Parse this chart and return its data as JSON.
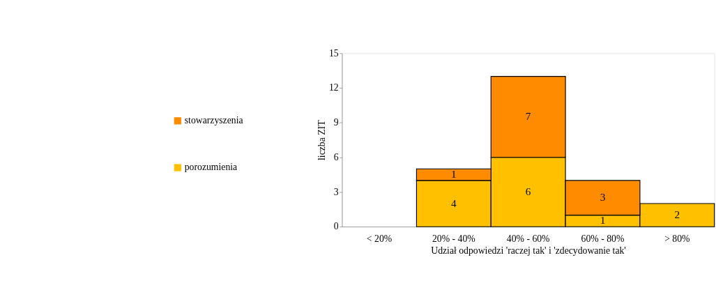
{
  "chart_data": {
    "type": "bar",
    "stacked": true,
    "categories": [
      "< 20%",
      "20% - 40%",
      "40% - 60%",
      "60% - 80%",
      "> 80%"
    ],
    "xlabel": "Udział odpowiedzi 'raczej tak' i 'zdecydowanie tak'",
    "ylabel": "liczba ZIT",
    "series": [
      {
        "name": "porozumienia",
        "color": "#ffc000",
        "values": [
          0,
          4,
          6,
          1,
          2
        ],
        "value_labels": [
          null,
          "4",
          "6",
          "1",
          "2"
        ]
      },
      {
        "name": "stowarzyszenia",
        "color": "#ff8c00",
        "values": [
          0,
          1,
          7,
          3,
          0
        ],
        "value_labels": [
          null,
          "1",
          "7",
          "3",
          null
        ]
      }
    ],
    "ylim": [
      0,
      15
    ],
    "yticks": [
      0,
      3,
      6,
      9,
      12,
      15
    ],
    "grid": false,
    "legend": "left"
  }
}
